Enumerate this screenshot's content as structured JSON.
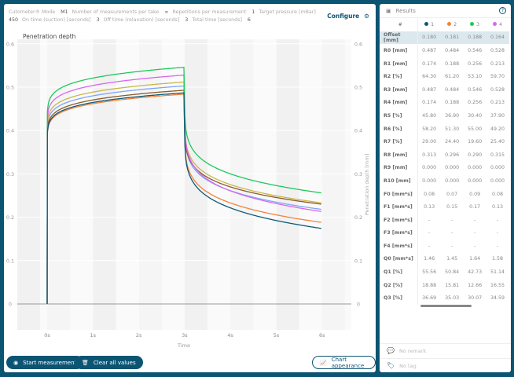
{
  "header": {
    "items": [
      {
        "label": "Cutometer® Mode",
        "value": "M1"
      },
      {
        "label": "Number of measurements per take",
        "value": "∞"
      },
      {
        "label": "Repetitions per measurement",
        "value": "1"
      },
      {
        "label": "Target pressure [mBar]",
        "value": "450"
      },
      {
        "label": "On time (suction) [seconds]",
        "value": "3"
      },
      {
        "label": "Off time (relaxation) [seconds]",
        "value": "3"
      },
      {
        "label": "Total time [seconds]",
        "value": "6"
      }
    ],
    "configure_label": "Configure"
  },
  "chart_data": {
    "type": "line",
    "title": "Penetration depth",
    "xlabel": "Time",
    "ylabel_right": "Penetration depth [mm]",
    "xlim": [
      -0.6,
      6.5
    ],
    "ylim": [
      -0.05,
      0.6
    ],
    "x_ticks": [
      "0s",
      "1s",
      "2s",
      "3s",
      "4s",
      "5s",
      "6s"
    ],
    "y_ticks": [
      "0",
      "0.1",
      "0.2",
      "0.3",
      "0.4",
      "0.5",
      "0.6"
    ],
    "series": [
      {
        "color": "#0d5a78",
        "peak_at_3s": 0.487,
        "value_at_6s": 0.174
      },
      {
        "color": "#f5823a",
        "peak_at_3s": 0.484,
        "value_at_6s": 0.188
      },
      {
        "color": "#1ec95a",
        "peak_at_3s": 0.546,
        "value_at_6s": 0.256
      },
      {
        "color": "#d966f0",
        "peak_at_3s": 0.528,
        "value_at_6s": 0.213
      },
      {
        "color": "#8b5a2b",
        "peak_at_3s": 0.493,
        "value_at_6s": 0.23
      },
      {
        "color": "#c9b74a",
        "peak_at_3s": 0.512,
        "value_at_6s": 0.233
      },
      {
        "color": "#7fa6f5",
        "peak_at_3s": 0.503,
        "value_at_6s": 0.218
      }
    ]
  },
  "buttons": {
    "start": "Start measurement",
    "clear": "Clear all values",
    "appearance": "Chart appearance"
  },
  "results": {
    "title": "Results",
    "columns": [
      {
        "label": "1",
        "color": "#0d5a78"
      },
      {
        "label": "2",
        "color": "#f5823a"
      },
      {
        "label": "3",
        "color": "#1ec95a"
      },
      {
        "label": "4",
        "color": "#d966f0"
      }
    ],
    "hash": "#",
    "rows": [
      {
        "label": "Offset [mm]",
        "values": [
          "0.180",
          "0.181",
          "0.188",
          "0.164"
        ]
      },
      {
        "label": "R0 [mm]",
        "values": [
          "0.487",
          "0.484",
          "0.546",
          "0.528"
        ]
      },
      {
        "label": "R1 [mm]",
        "values": [
          "0.174",
          "0.188",
          "0.256",
          "0.213"
        ]
      },
      {
        "label": "R2 [%]",
        "values": [
          "64.30",
          "61.20",
          "53.10",
          "59.70"
        ]
      },
      {
        "label": "R3 [mm]",
        "values": [
          "0.487",
          "0.484",
          "0.546",
          "0.528"
        ]
      },
      {
        "label": "R4 [mm]",
        "values": [
          "0.174",
          "0.188",
          "0.256",
          "0.213"
        ]
      },
      {
        "label": "R5 [%]",
        "values": [
          "45.80",
          "36.90",
          "30.40",
          "37.90"
        ]
      },
      {
        "label": "R6 [%]",
        "values": [
          "58.20",
          "51.30",
          "55.00",
          "49.20"
        ]
      },
      {
        "label": "R7 [%]",
        "values": [
          "29.00",
          "24.40",
          "19.60",
          "25.40"
        ]
      },
      {
        "label": "R8 [mm]",
        "values": [
          "0.313",
          "0.296",
          "0.290",
          "0.315"
        ]
      },
      {
        "label": "R9 [mm]",
        "values": [
          "0.000",
          "0.000",
          "0.000",
          "0.000"
        ]
      },
      {
        "label": "R10 [mm]",
        "values": [
          "0.000",
          "0.000",
          "0.000",
          "0.000"
        ]
      },
      {
        "label": "F0 [mm*s]",
        "values": [
          "0.08",
          "0.07",
          "0.09",
          "0.08"
        ]
      },
      {
        "label": "F1 [mm*s]",
        "values": [
          "0.13",
          "0.15",
          "0.17",
          "0.13"
        ]
      },
      {
        "label": "F2 [mm*s]",
        "values": [
          "-",
          "-",
          "-",
          "-"
        ]
      },
      {
        "label": "F3 [mm*s]",
        "values": [
          "-",
          "-",
          "-",
          "-"
        ]
      },
      {
        "label": "F4 [mm*s]",
        "values": [
          "-",
          "-",
          "-",
          "-"
        ]
      },
      {
        "label": "Q0 [mm*s]",
        "values": [
          "1.46",
          "1.45",
          "1.64",
          "1.58"
        ]
      },
      {
        "label": "Q1 [%]",
        "values": [
          "55.56",
          "50.84",
          "42.73",
          "51.14"
        ]
      },
      {
        "label": "Q2 [%]",
        "values": [
          "18.88",
          "15.81",
          "12.66",
          "16.55"
        ]
      },
      {
        "label": "Q3 [%]",
        "values": [
          "36.69",
          "35.03",
          "30.07",
          "34.59"
        ]
      }
    ],
    "remark": "No remark",
    "tag": "No tag"
  }
}
